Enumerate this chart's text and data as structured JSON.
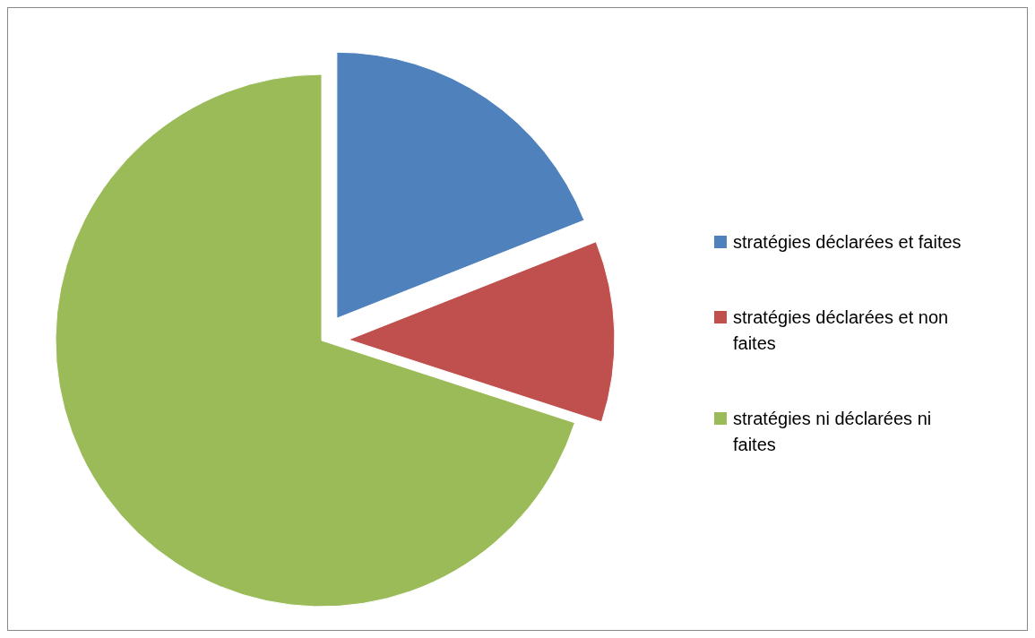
{
  "chart_data": {
    "type": "pie",
    "categories": [
      "stratégies déclarées et faites",
      "stratégies déclarées et non faites",
      "stratégies ni déclarées ni faites"
    ],
    "values": [
      19,
      11,
      70
    ],
    "colors": [
      "#4f81bd",
      "#c0504d",
      "#9bbb59"
    ],
    "legend": "right"
  }
}
